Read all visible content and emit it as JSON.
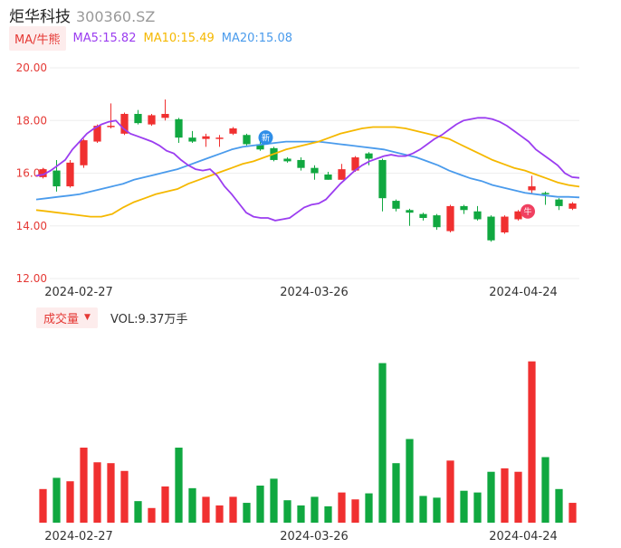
{
  "header": {
    "name": "炬华科技",
    "code": "300360.SZ"
  },
  "ma_legend": {
    "tab": "MA/牛熊",
    "ma5": "MA5:15.82",
    "ma10": "MA10:15.49",
    "ma20": "MA20:15.08",
    "colors": {
      "ma5": "#9b3df0",
      "ma10": "#f5b800",
      "ma20": "#4a9bec",
      "up": "#f03030",
      "down": "#10a840"
    }
  },
  "volume_legend": {
    "tab": "成交量",
    "vol": "VOL:9.37万手"
  },
  "markers": {
    "label_new": "新",
    "label_bull": "牛"
  },
  "chart_data": [
    {
      "type": "candlestick",
      "y_ticks": [
        "20.00",
        "18.00",
        "16.00",
        "14.00",
        "12.00"
      ],
      "ylim": [
        12,
        20
      ],
      "x_ticks": [
        "2024-02-27",
        "2024-03-26",
        "2024-04-24"
      ],
      "candles": [
        {
          "o": 15.85,
          "c": 16.15,
          "h": 16.2,
          "l": 15.8
        },
        {
          "o": 16.1,
          "c": 15.5,
          "h": 16.5,
          "l": 15.3
        },
        {
          "o": 15.5,
          "c": 16.4,
          "h": 16.5,
          "l": 15.45
        },
        {
          "o": 16.3,
          "c": 17.25,
          "h": 17.3,
          "l": 16.2
        },
        {
          "o": 17.2,
          "c": 17.8,
          "h": 17.85,
          "l": 17.15
        },
        {
          "o": 17.75,
          "c": 17.8,
          "h": 18.65,
          "l": 17.7
        },
        {
          "o": 17.5,
          "c": 18.25,
          "h": 18.3,
          "l": 17.45
        },
        {
          "o": 18.25,
          "c": 17.9,
          "h": 18.4,
          "l": 17.85
        },
        {
          "o": 17.85,
          "c": 18.2,
          "h": 18.25,
          "l": 17.8
        },
        {
          "o": 18.1,
          "c": 18.25,
          "h": 18.8,
          "l": 18.0
        },
        {
          "o": 18.05,
          "c": 17.35,
          "h": 18.1,
          "l": 17.15
        },
        {
          "o": 17.35,
          "c": 17.2,
          "h": 17.6,
          "l": 17.15
        },
        {
          "o": 17.3,
          "c": 17.4,
          "h": 17.5,
          "l": 17.0
        },
        {
          "o": 17.3,
          "c": 17.35,
          "h": 17.45,
          "l": 17.0
        },
        {
          "o": 17.5,
          "c": 17.7,
          "h": 17.75,
          "l": 17.45
        },
        {
          "o": 17.45,
          "c": 17.1,
          "h": 17.5,
          "l": 17.05
        },
        {
          "o": 17.1,
          "c": 16.9,
          "h": 17.2,
          "l": 16.85
        },
        {
          "o": 16.95,
          "c": 16.5,
          "h": 17.0,
          "l": 16.45
        },
        {
          "o": 16.55,
          "c": 16.45,
          "h": 16.6,
          "l": 16.4
        },
        {
          "o": 16.5,
          "c": 16.2,
          "h": 16.6,
          "l": 16.1
        },
        {
          "o": 16.2,
          "c": 16.0,
          "h": 16.3,
          "l": 15.75
        },
        {
          "o": 15.95,
          "c": 15.75,
          "h": 16.05,
          "l": 15.75
        },
        {
          "o": 15.75,
          "c": 16.15,
          "h": 16.35,
          "l": 15.75
        },
        {
          "o": 16.1,
          "c": 16.6,
          "h": 16.65,
          "l": 16.05
        },
        {
          "o": 16.75,
          "c": 16.55,
          "h": 16.8,
          "l": 16.3
        },
        {
          "o": 16.5,
          "c": 15.05,
          "h": 16.55,
          "l": 14.55
        },
        {
          "o": 14.95,
          "c": 14.65,
          "h": 15.0,
          "l": 14.55
        },
        {
          "o": 14.6,
          "c": 14.5,
          "h": 14.65,
          "l": 14.0
        },
        {
          "o": 14.45,
          "c": 14.3,
          "h": 14.5,
          "l": 14.2
        },
        {
          "o": 14.4,
          "c": 13.95,
          "h": 14.45,
          "l": 13.85
        },
        {
          "o": 13.8,
          "c": 14.75,
          "h": 14.8,
          "l": 13.75
        },
        {
          "o": 14.75,
          "c": 14.6,
          "h": 14.8,
          "l": 14.45
        },
        {
          "o": 14.55,
          "c": 14.25,
          "h": 14.75,
          "l": 14.2
        },
        {
          "o": 14.35,
          "c": 13.45,
          "h": 14.4,
          "l": 13.4
        },
        {
          "o": 13.75,
          "c": 14.35,
          "h": 14.4,
          "l": 13.7
        },
        {
          "o": 14.25,
          "c": 14.55,
          "h": 14.6,
          "l": 14.2
        },
        {
          "o": 15.35,
          "c": 15.5,
          "h": 15.9,
          "l": 15.2
        },
        {
          "o": 15.25,
          "c": 15.2,
          "h": 15.3,
          "l": 14.8
        },
        {
          "o": 15.0,
          "c": 14.75,
          "h": 15.05,
          "l": 14.6
        },
        {
          "o": 14.65,
          "c": 14.85,
          "h": 14.9,
          "l": 14.6
        }
      ],
      "ma5": [
        15.9,
        15.95,
        16.1,
        16.3,
        16.5,
        16.9,
        17.2,
        17.5,
        17.7,
        17.85,
        17.95,
        18.0,
        17.7,
        17.5,
        17.4,
        17.3,
        17.2,
        17.05,
        16.85,
        16.75,
        16.5,
        16.3,
        16.15,
        16.1,
        16.15,
        15.9,
        15.5,
        15.2,
        14.85,
        14.5,
        14.35,
        14.3,
        14.3,
        14.2,
        14.25,
        14.3,
        14.5,
        14.7,
        14.8,
        14.85,
        15.0,
        15.3,
        15.6,
        15.85,
        16.1,
        16.3,
        16.45,
        16.55,
        16.65,
        16.7,
        16.65,
        16.65,
        16.75,
        16.9,
        17.1,
        17.3,
        17.45,
        17.65,
        17.85,
        18.0,
        18.05,
        18.1,
        18.1,
        18.05,
        17.95,
        17.8,
        17.6,
        17.4,
        17.2,
        16.9,
        16.7,
        16.5,
        16.3,
        16.0,
        15.85,
        15.82
      ],
      "ma10": [
        14.6,
        14.55,
        14.5,
        14.45,
        14.4,
        14.35,
        14.35,
        14.45,
        14.7,
        14.9,
        15.05,
        15.2,
        15.3,
        15.4,
        15.6,
        15.75,
        15.9,
        16.05,
        16.2,
        16.35,
        16.45,
        16.6,
        16.75,
        16.9,
        17.0,
        17.1,
        17.2,
        17.35,
        17.5,
        17.6,
        17.7,
        17.75,
        17.75,
        17.75,
        17.7,
        17.6,
        17.5,
        17.4,
        17.3,
        17.1,
        16.9,
        16.7,
        16.5,
        16.35,
        16.2,
        16.1,
        15.95,
        15.8,
        15.65,
        15.55,
        15.49
      ],
      "ma20": [
        15.0,
        15.05,
        15.1,
        15.15,
        15.2,
        15.3,
        15.4,
        15.5,
        15.6,
        15.75,
        15.85,
        15.95,
        16.05,
        16.15,
        16.3,
        16.45,
        16.6,
        16.75,
        16.9,
        17.0,
        17.05,
        17.1,
        17.15,
        17.2,
        17.2,
        17.2,
        17.2,
        17.15,
        17.1,
        17.05,
        17.0,
        16.95,
        16.9,
        16.8,
        16.7,
        16.6,
        16.45,
        16.3,
        16.1,
        15.95,
        15.8,
        15.7,
        15.55,
        15.45,
        15.35,
        15.25,
        15.2,
        15.15,
        15.1,
        15.1,
        15.08
      ]
    },
    {
      "type": "bar",
      "series_name": "成交量",
      "x_ticks": [
        "2024-02-27",
        "2024-03-26",
        "2024-04-24"
      ],
      "values": [
        3.9,
        5.2,
        4.8,
        8.7,
        7.0,
        6.9,
        6.0,
        2.5,
        1.7,
        4.2,
        8.7,
        4.0,
        3.0,
        2.0,
        3.0,
        2.3,
        4.3,
        5.1,
        2.6,
        2.0,
        3.0,
        1.9,
        3.5,
        2.7,
        3.4,
        18.5,
        6.9,
        9.7,
        3.1,
        2.9,
        7.2,
        3.7,
        3.5,
        5.9,
        6.3,
        5.9,
        18.7,
        7.6,
        3.9,
        2.3
      ],
      "ylim": [
        0,
        19.5
      ]
    }
  ]
}
